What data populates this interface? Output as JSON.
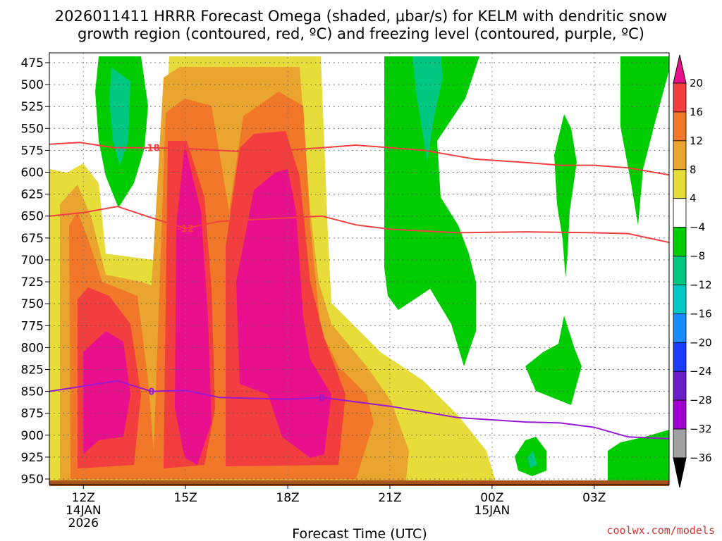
{
  "chart_data": {
    "type": "time-height-contour",
    "title_line1": "2026011411 HRRR Forecast Omega (shaded, μbar/s) for KELM with dendritic snow",
    "title_line2": "growth region (contoured, red, ºC) and freezing level (contoured, purple, ºC)",
    "xlabel": "Forecast Time (UTC)",
    "credit": "coolwx.com/models",
    "y_axis": {
      "unit": "hPa",
      "ticks": [
        475,
        500,
        525,
        550,
        575,
        600,
        625,
        650,
        675,
        700,
        725,
        750,
        775,
        800,
        825,
        850,
        875,
        900,
        925,
        950
      ],
      "range": [
        475,
        950
      ]
    },
    "x_axis": {
      "unit": "hours since 12Z 14JAN2026",
      "range": [
        -1,
        17.2
      ],
      "ticks": [
        {
          "hour": 0,
          "label": "12Z",
          "sub": [
            "14JAN",
            "2026"
          ]
        },
        {
          "hour": 3,
          "label": "15Z",
          "sub": []
        },
        {
          "hour": 6,
          "label": "18Z",
          "sub": []
        },
        {
          "hour": 9,
          "label": "21Z",
          "sub": []
        },
        {
          "hour": 12,
          "label": "00Z",
          "sub": [
            "15JAN"
          ]
        },
        {
          "hour": 15,
          "label": "03Z",
          "sub": []
        }
      ]
    },
    "colorbar": {
      "labels": [
        "20",
        "16",
        "12",
        "8",
        "4",
        "−4",
        "−8",
        "−12",
        "−16",
        "−20",
        "−24",
        "−28",
        "−32",
        "−36"
      ],
      "bands": [
        {
          "from": 20,
          "to": null,
          "color": "#e8108c"
        },
        {
          "from": 16,
          "to": 20,
          "color": "#f23e3e"
        },
        {
          "from": 12,
          "to": 16,
          "color": "#f07828"
        },
        {
          "from": 8,
          "to": 12,
          "color": "#e9a530"
        },
        {
          "from": 4,
          "to": 8,
          "color": "#e6dc3a"
        },
        {
          "from": -4,
          "to": 4,
          "color": "#ffffff"
        },
        {
          "from": -8,
          "to": -4,
          "color": "#00cc00"
        },
        {
          "from": -12,
          "to": -8,
          "color": "#00c880"
        },
        {
          "from": -16,
          "to": -12,
          "color": "#00c8c8"
        },
        {
          "from": -20,
          "to": -16,
          "color": "#1a8cff"
        },
        {
          "from": -24,
          "to": -20,
          "color": "#1e3cff"
        },
        {
          "from": -28,
          "to": -24,
          "color": "#6a1ec8"
        },
        {
          "from": -32,
          "to": -28,
          "color": "#a000d0"
        },
        {
          "from": -36,
          "to": -32,
          "color": "#a0a0a0"
        },
        {
          "from": null,
          "to": -36,
          "color": "#000000"
        }
      ]
    },
    "contours": [
      {
        "name": "dgz-top",
        "label": "-18",
        "color": "#f04040",
        "points": [
          [
            -1,
            568
          ],
          [
            -0.1,
            566
          ],
          [
            0.9,
            572
          ],
          [
            2,
            572
          ],
          [
            3,
            573
          ],
          [
            4.5,
            576
          ],
          [
            5.5,
            576
          ],
          [
            7,
            572
          ],
          [
            8,
            569
          ],
          [
            10,
            575
          ],
          [
            11.5,
            585
          ],
          [
            13,
            589
          ],
          [
            14,
            592
          ],
          [
            15,
            592
          ],
          [
            16,
            595
          ],
          [
            17.2,
            603
          ]
        ],
        "label_at": [
          2,
          572
        ]
      },
      {
        "name": "dgz-bottom",
        "label": "-12",
        "color": "#f04040",
        "points": [
          [
            -1,
            650
          ],
          [
            0,
            646
          ],
          [
            1,
            639
          ],
          [
            2,
            652
          ],
          [
            3,
            664
          ],
          [
            4,
            656
          ],
          [
            5,
            654
          ],
          [
            7,
            650
          ],
          [
            8,
            660
          ],
          [
            9,
            665
          ],
          [
            11,
            669
          ],
          [
            13,
            668
          ],
          [
            15,
            669
          ],
          [
            16,
            670
          ],
          [
            17.2,
            680
          ]
        ],
        "label_at": [
          3,
          664
        ]
      },
      {
        "name": "freezing-level",
        "label": "0",
        "color": "#9a1ad2",
        "points": [
          [
            -1,
            850
          ],
          [
            0,
            844
          ],
          [
            1,
            838
          ],
          [
            2,
            850
          ],
          [
            3,
            849
          ],
          [
            4,
            857
          ],
          [
            5,
            858
          ],
          [
            6,
            859
          ],
          [
            7,
            857
          ],
          [
            8,
            862
          ],
          [
            9,
            867
          ],
          [
            11,
            880
          ],
          [
            13,
            885
          ],
          [
            14,
            886
          ],
          [
            15,
            891
          ],
          [
            16,
            902
          ],
          [
            17.2,
            904
          ]
        ],
        "label_at_list": [
          [
            2,
            850
          ],
          [
            7,
            857
          ]
        ]
      }
    ]
  }
}
